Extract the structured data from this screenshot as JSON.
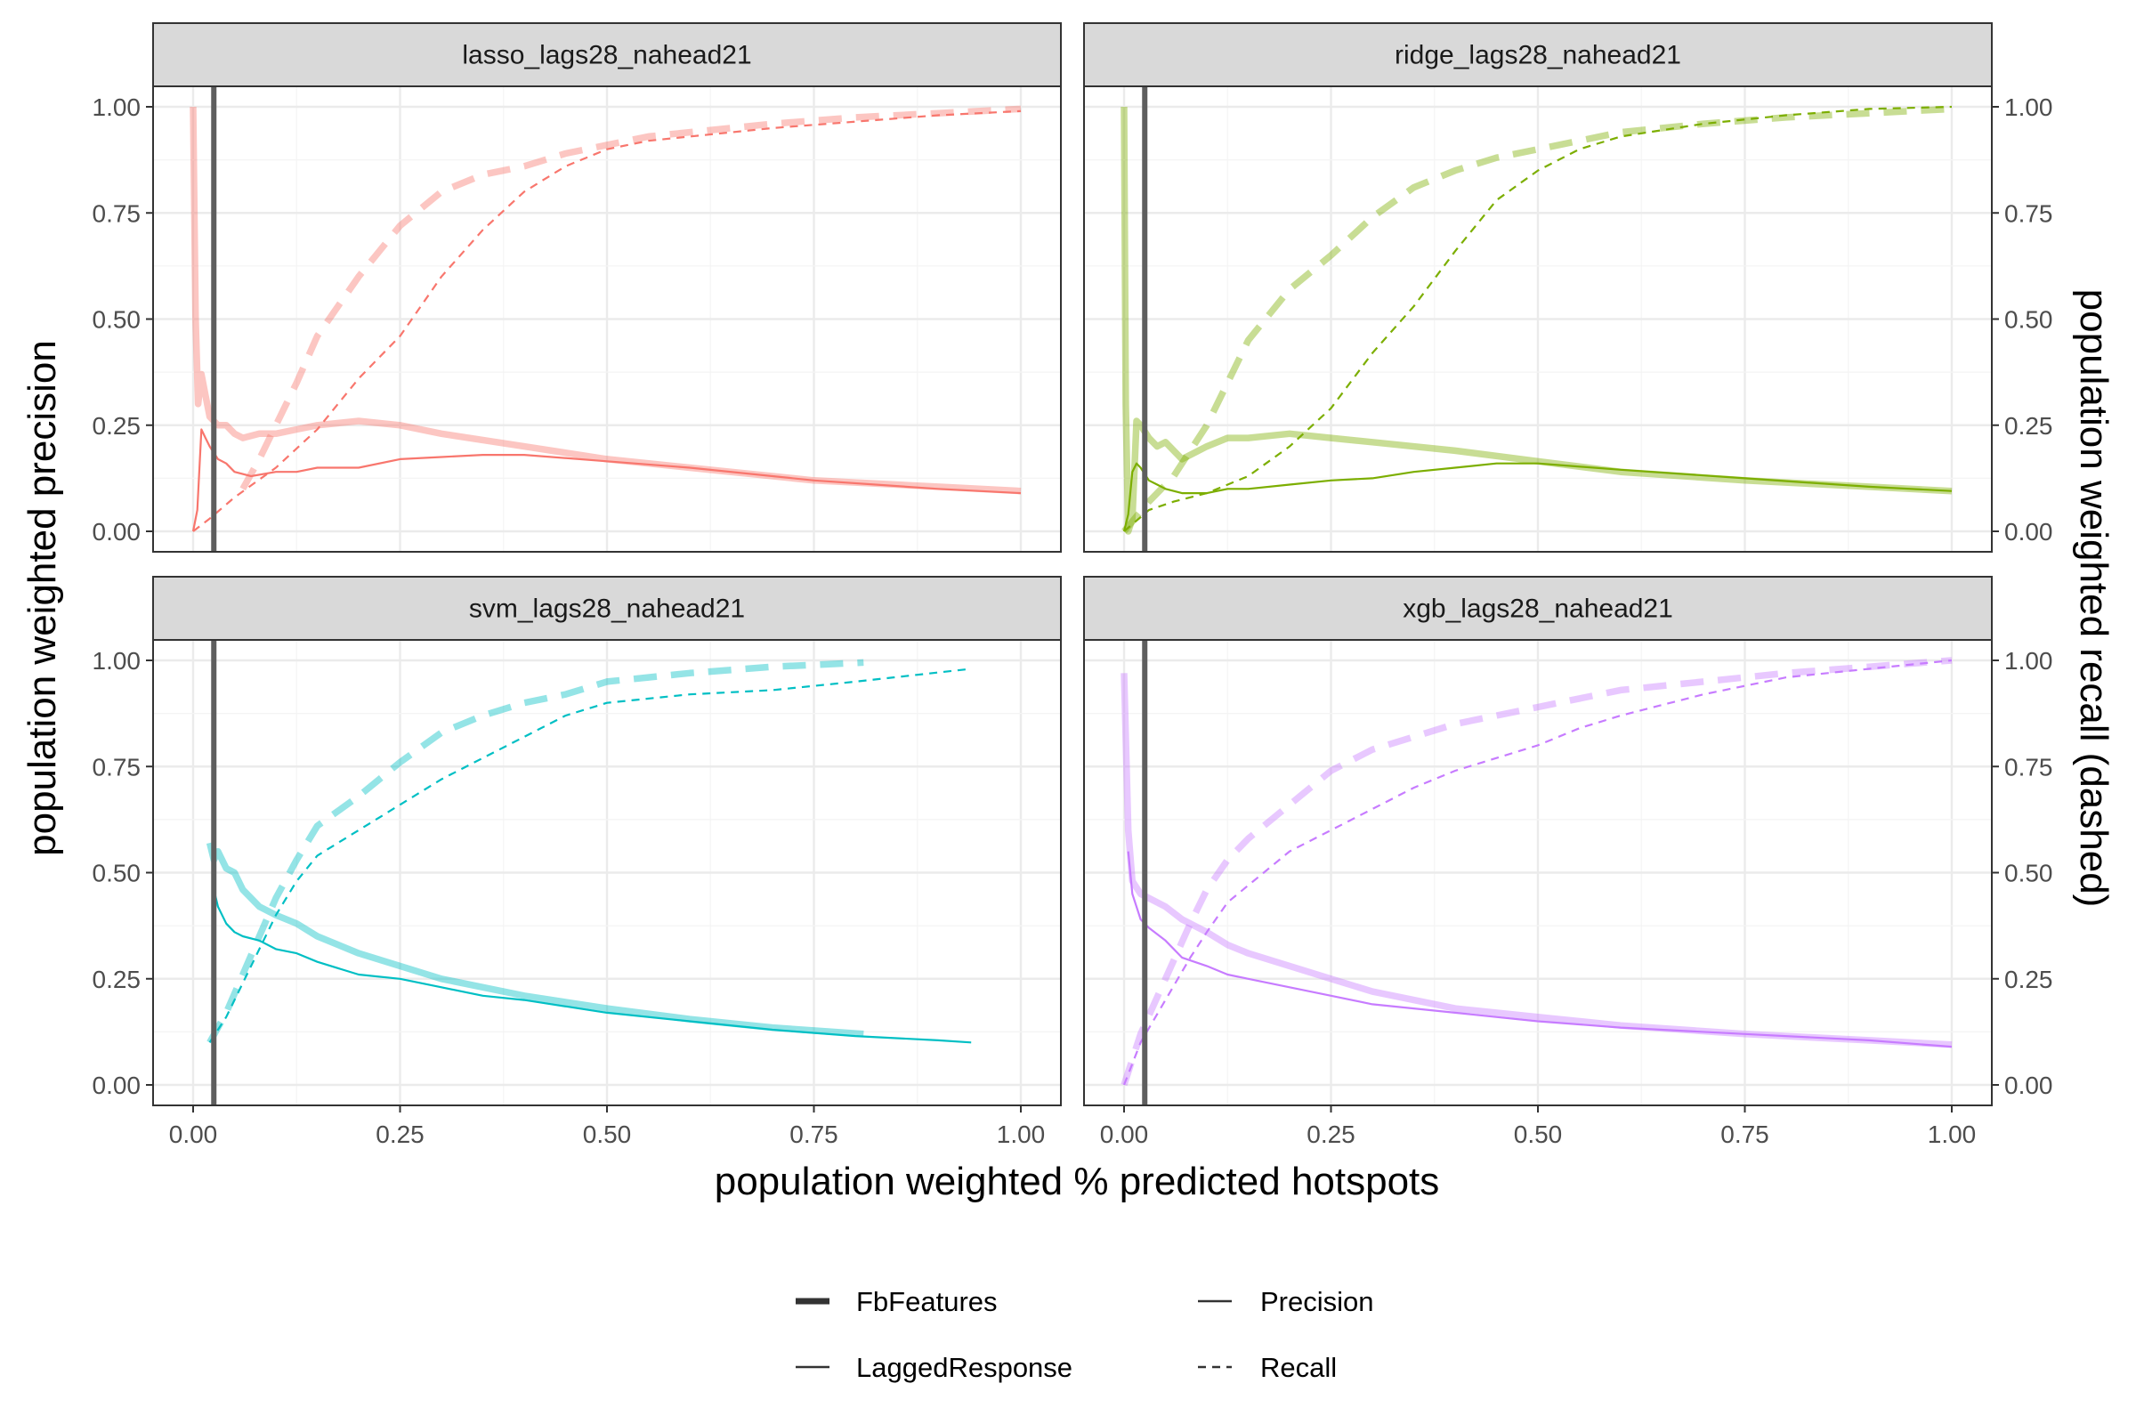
{
  "chart_data": {
    "type": "line",
    "x_axis": {
      "label": "population weighted % predicted hotspots",
      "range": [
        0,
        1
      ],
      "ticks": [
        0.0,
        0.25,
        0.5,
        0.75,
        1.0
      ],
      "tick_labels": [
        "0.00",
        "0.25",
        "0.50",
        "0.75",
        "1.00"
      ]
    },
    "y_axis_left": {
      "label": "population weighted precision",
      "range": [
        0,
        1
      ],
      "ticks": [
        0.0,
        0.25,
        0.5,
        0.75,
        1.0
      ],
      "tick_labels": [
        "0.00",
        "0.25",
        "0.50",
        "0.75",
        "1.00"
      ]
    },
    "y_axis_right": {
      "label": "population weighted recall (dashed)",
      "range": [
        0,
        1
      ],
      "ticks": [
        0.0,
        0.25,
        0.5,
        0.75,
        1.0
      ],
      "tick_labels": [
        "0.00",
        "0.25",
        "0.50",
        "0.75",
        "1.00"
      ]
    },
    "grid": true,
    "vline_x": 0.025,
    "legend": {
      "placement": "bottom",
      "items": [
        {
          "label": "FbFeatures",
          "style": "thick-solid"
        },
        {
          "label": "LaggedResponse",
          "style": "thin-solid"
        },
        {
          "label": "Precision",
          "style": "solid"
        },
        {
          "label": "Recall",
          "style": "dashed"
        }
      ]
    },
    "panels": [
      {
        "title": "lasso_lags28_nahead21",
        "color": "#F8766D",
        "series": [
          {
            "name": "FbFeatures",
            "metric": "Precision",
            "x": [
              0.0,
              0.003,
              0.006,
              0.01,
              0.015,
              0.02,
              0.03,
              0.04,
              0.05,
              0.06,
              0.08,
              0.1,
              0.125,
              0.15,
              0.2,
              0.25,
              0.3,
              0.4,
              0.5,
              0.6,
              0.75,
              0.9,
              1.0
            ],
            "y": [
              1.0,
              0.5,
              0.3,
              0.37,
              0.32,
              0.27,
              0.25,
              0.25,
              0.23,
              0.22,
              0.23,
              0.23,
              0.24,
              0.25,
              0.26,
              0.25,
              0.23,
              0.2,
              0.17,
              0.15,
              0.12,
              0.105,
              0.095
            ]
          },
          {
            "name": "LaggedResponse",
            "metric": "Precision",
            "x": [
              0.0,
              0.005,
              0.01,
              0.015,
              0.02,
              0.03,
              0.04,
              0.05,
              0.07,
              0.1,
              0.125,
              0.15,
              0.2,
              0.25,
              0.3,
              0.35,
              0.4,
              0.5,
              0.6,
              0.75,
              0.9,
              1.0
            ],
            "y": [
              0.0,
              0.05,
              0.24,
              0.22,
              0.2,
              0.17,
              0.16,
              0.14,
              0.13,
              0.14,
              0.14,
              0.15,
              0.15,
              0.17,
              0.175,
              0.18,
              0.18,
              0.165,
              0.15,
              0.12,
              0.1,
              0.09
            ]
          },
          {
            "name": "FbFeatures",
            "metric": "Recall",
            "x": [
              0.06,
              0.08,
              0.1,
              0.125,
              0.15,
              0.2,
              0.25,
              0.3,
              0.35,
              0.4,
              0.45,
              0.5,
              0.55,
              0.6,
              0.7,
              0.8,
              0.9,
              1.0
            ],
            "y": [
              0.1,
              0.17,
              0.25,
              0.35,
              0.46,
              0.6,
              0.72,
              0.8,
              0.84,
              0.86,
              0.89,
              0.91,
              0.93,
              0.94,
              0.96,
              0.975,
              0.985,
              0.995
            ]
          },
          {
            "name": "LaggedResponse",
            "metric": "Recall",
            "x": [
              0.0,
              0.02,
              0.05,
              0.1,
              0.15,
              0.2,
              0.25,
              0.3,
              0.35,
              0.4,
              0.45,
              0.5,
              0.55,
              0.6,
              0.7,
              0.8,
              0.9,
              1.0
            ],
            "y": [
              0.0,
              0.03,
              0.08,
              0.15,
              0.24,
              0.36,
              0.46,
              0.6,
              0.71,
              0.8,
              0.86,
              0.9,
              0.92,
              0.93,
              0.95,
              0.965,
              0.98,
              0.99
            ]
          }
        ]
      },
      {
        "title": "ridge_lags28_nahead21",
        "color": "#7CAE00",
        "series": [
          {
            "name": "FbFeatures",
            "metric": "Precision",
            "x": [
              0.0,
              0.002,
              0.005,
              0.01,
              0.015,
              0.02,
              0.03,
              0.04,
              0.05,
              0.07,
              0.1,
              0.125,
              0.15,
              0.2,
              0.25,
              0.3,
              0.4,
              0.5,
              0.6,
              0.75,
              0.9,
              1.0
            ],
            "y": [
              1.0,
              0.3,
              0.0,
              0.03,
              0.26,
              0.25,
              0.22,
              0.2,
              0.21,
              0.17,
              0.2,
              0.22,
              0.22,
              0.23,
              0.22,
              0.21,
              0.19,
              0.165,
              0.14,
              0.12,
              0.105,
              0.095
            ]
          },
          {
            "name": "LaggedResponse",
            "metric": "Precision",
            "x": [
              0.0,
              0.005,
              0.01,
              0.015,
              0.02,
              0.03,
              0.04,
              0.05,
              0.07,
              0.1,
              0.125,
              0.15,
              0.2,
              0.25,
              0.3,
              0.35,
              0.4,
              0.45,
              0.5,
              0.6,
              0.75,
              0.9,
              1.0
            ],
            "y": [
              0.0,
              0.04,
              0.14,
              0.16,
              0.15,
              0.12,
              0.11,
              0.1,
              0.09,
              0.09,
              0.1,
              0.1,
              0.11,
              0.12,
              0.125,
              0.14,
              0.15,
              0.16,
              0.16,
              0.145,
              0.125,
              0.105,
              0.095
            ]
          },
          {
            "name": "FbFeatures",
            "metric": "Recall",
            "x": [
              0.0,
              0.03,
              0.06,
              0.1,
              0.125,
              0.15,
              0.2,
              0.25,
              0.3,
              0.35,
              0.4,
              0.45,
              0.5,
              0.55,
              0.6,
              0.7,
              0.8,
              0.9,
              1.0
            ],
            "y": [
              0.0,
              0.07,
              0.13,
              0.25,
              0.35,
              0.45,
              0.57,
              0.65,
              0.74,
              0.81,
              0.85,
              0.88,
              0.9,
              0.92,
              0.94,
              0.96,
              0.975,
              0.985,
              0.995
            ]
          },
          {
            "name": "LaggedResponse",
            "metric": "Recall",
            "x": [
              0.0,
              0.03,
              0.06,
              0.1,
              0.15,
              0.2,
              0.25,
              0.3,
              0.35,
              0.4,
              0.45,
              0.5,
              0.55,
              0.6,
              0.7,
              0.8,
              0.9,
              1.0
            ],
            "y": [
              0.0,
              0.05,
              0.07,
              0.09,
              0.13,
              0.2,
              0.29,
              0.42,
              0.53,
              0.66,
              0.78,
              0.85,
              0.9,
              0.93,
              0.96,
              0.98,
              0.995,
              1.0
            ]
          }
        ]
      },
      {
        "title": "svm_lags28_nahead21",
        "color": "#00BFC4",
        "series": [
          {
            "name": "FbFeatures",
            "metric": "Precision",
            "x": [
              0.02,
              0.025,
              0.03,
              0.04,
              0.05,
              0.06,
              0.07,
              0.08,
              0.1,
              0.125,
              0.15,
              0.2,
              0.25,
              0.3,
              0.35,
              0.4,
              0.5,
              0.6,
              0.7,
              0.81
            ],
            "y": [
              0.57,
              0.53,
              0.55,
              0.51,
              0.5,
              0.46,
              0.44,
              0.42,
              0.4,
              0.38,
              0.35,
              0.31,
              0.28,
              0.25,
              0.23,
              0.21,
              0.18,
              0.155,
              0.135,
              0.12
            ]
          },
          {
            "name": "LaggedResponse",
            "metric": "Precision",
            "x": [
              0.025,
              0.03,
              0.04,
              0.05,
              0.06,
              0.08,
              0.1,
              0.125,
              0.15,
              0.2,
              0.25,
              0.3,
              0.35,
              0.4,
              0.5,
              0.6,
              0.7,
              0.8,
              0.9,
              0.94
            ],
            "y": [
              0.46,
              0.42,
              0.38,
              0.36,
              0.35,
              0.34,
              0.32,
              0.31,
              0.29,
              0.26,
              0.25,
              0.23,
              0.21,
              0.2,
              0.17,
              0.15,
              0.13,
              0.115,
              0.105,
              0.1
            ]
          },
          {
            "name": "FbFeatures",
            "metric": "Recall",
            "x": [
              0.02,
              0.04,
              0.06,
              0.08,
              0.1,
              0.125,
              0.15,
              0.2,
              0.25,
              0.3,
              0.35,
              0.4,
              0.45,
              0.5,
              0.55,
              0.6,
              0.7,
              0.81
            ],
            "y": [
              0.1,
              0.17,
              0.26,
              0.35,
              0.44,
              0.53,
              0.61,
              0.68,
              0.76,
              0.83,
              0.87,
              0.9,
              0.92,
              0.95,
              0.96,
              0.97,
              0.985,
              0.995
            ]
          },
          {
            "name": "LaggedResponse",
            "metric": "Recall",
            "x": [
              0.02,
              0.04,
              0.06,
              0.08,
              0.1,
              0.125,
              0.15,
              0.2,
              0.25,
              0.3,
              0.35,
              0.4,
              0.45,
              0.5,
              0.6,
              0.7,
              0.8,
              0.94
            ],
            "y": [
              0.1,
              0.16,
              0.24,
              0.32,
              0.4,
              0.48,
              0.54,
              0.6,
              0.66,
              0.72,
              0.77,
              0.82,
              0.87,
              0.9,
              0.92,
              0.93,
              0.95,
              0.98
            ]
          }
        ]
      },
      {
        "title": "xgb_lags28_nahead21",
        "color": "#C77CFF",
        "series": [
          {
            "name": "FbFeatures",
            "metric": "Precision",
            "x": [
              0.0,
              0.005,
              0.01,
              0.02,
              0.03,
              0.05,
              0.07,
              0.1,
              0.125,
              0.15,
              0.2,
              0.25,
              0.3,
              0.4,
              0.5,
              0.6,
              0.75,
              0.9,
              1.0
            ],
            "y": [
              0.97,
              0.6,
              0.48,
              0.45,
              0.44,
              0.42,
              0.39,
              0.36,
              0.33,
              0.31,
              0.28,
              0.25,
              0.22,
              0.18,
              0.16,
              0.14,
              0.12,
              0.105,
              0.095
            ]
          },
          {
            "name": "LaggedResponse",
            "metric": "Precision",
            "x": [
              0.005,
              0.01,
              0.02,
              0.03,
              0.05,
              0.07,
              0.1,
              0.125,
              0.15,
              0.2,
              0.25,
              0.3,
              0.4,
              0.5,
              0.6,
              0.75,
              0.9,
              1.0
            ],
            "y": [
              0.55,
              0.45,
              0.39,
              0.37,
              0.34,
              0.3,
              0.28,
              0.26,
              0.25,
              0.23,
              0.21,
              0.19,
              0.17,
              0.15,
              0.135,
              0.12,
              0.105,
              0.09
            ]
          },
          {
            "name": "FbFeatures",
            "metric": "Recall",
            "x": [
              0.0,
              0.02,
              0.05,
              0.08,
              0.1,
              0.125,
              0.15,
              0.2,
              0.25,
              0.3,
              0.35,
              0.4,
              0.45,
              0.5,
              0.55,
              0.6,
              0.7,
              0.8,
              0.9,
              1.0
            ],
            "y": [
              0.0,
              0.12,
              0.25,
              0.38,
              0.46,
              0.53,
              0.58,
              0.66,
              0.74,
              0.79,
              0.82,
              0.85,
              0.87,
              0.89,
              0.91,
              0.93,
              0.95,
              0.97,
              0.985,
              1.0
            ]
          },
          {
            "name": "LaggedResponse",
            "metric": "Recall",
            "x": [
              0.0,
              0.02,
              0.05,
              0.08,
              0.1,
              0.125,
              0.15,
              0.2,
              0.25,
              0.3,
              0.35,
              0.4,
              0.45,
              0.5,
              0.55,
              0.6,
              0.7,
              0.8,
              0.9,
              1.0
            ],
            "y": [
              0.0,
              0.1,
              0.2,
              0.3,
              0.36,
              0.43,
              0.47,
              0.55,
              0.6,
              0.65,
              0.7,
              0.74,
              0.77,
              0.8,
              0.84,
              0.87,
              0.92,
              0.96,
              0.98,
              1.0
            ]
          }
        ]
      }
    ]
  }
}
